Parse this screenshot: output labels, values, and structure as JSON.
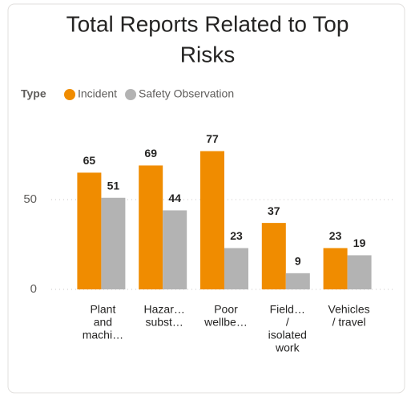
{
  "chart_data": {
    "type": "bar",
    "title": [
      "Total Reports Related to Top",
      "Risks"
    ],
    "legend_title": "Type",
    "categories": [
      [
        "Plant",
        "and",
        "machi…"
      ],
      [
        "Hazar…",
        "subst…"
      ],
      [
        "Poor",
        "wellbe…"
      ],
      [
        "Field…",
        "/",
        "isolated",
        "work"
      ],
      [
        "Vehicles",
        "/ travel"
      ]
    ],
    "series": [
      {
        "name": "Incident",
        "color": "#f08c00",
        "values": [
          65,
          69,
          77,
          37,
          23
        ]
      },
      {
        "name": "Safety Observation",
        "color": "#b3b3b3",
        "values": [
          51,
          44,
          23,
          9,
          19
        ]
      }
    ],
    "ylim": [
      0,
      90
    ],
    "yticks": [
      0,
      50
    ],
    "grid": true
  }
}
